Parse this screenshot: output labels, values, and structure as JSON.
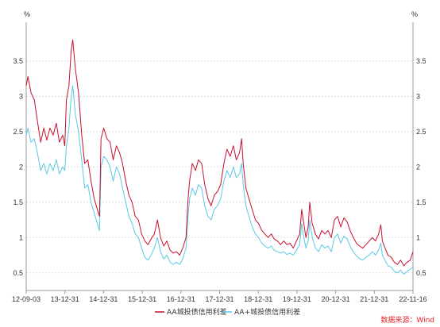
{
  "chart_data": {
    "type": "line",
    "ylabel_left": "%",
    "ylabel_right": "%",
    "ylim": [
      0.25,
      4.05
    ],
    "yticks": [
      "0.5",
      "1",
      "1.5",
      "2",
      "2.5",
      "3",
      "3.5"
    ],
    "xlim": [
      "2012-09-03",
      "2022-11-16"
    ],
    "xticks": [
      "12-09-03",
      "13-12-31",
      "14-12-31",
      "15-12-31",
      "16-12-31",
      "17-12-31",
      "18-12-31",
      "19-12-31",
      "20-12-31",
      "21-12-31",
      "22-11-16"
    ],
    "grid": true,
    "legend_position": "bottom",
    "series": [
      {
        "name": "AA城投债信用利差",
        "color": "#c8102e",
        "points": [
          [
            "2012-09-03",
            3.15
          ],
          [
            "2012-09-20",
            3.28
          ],
          [
            "2012-10-20",
            3.05
          ],
          [
            "2012-11-20",
            2.95
          ],
          [
            "2012-12-20",
            2.65
          ],
          [
            "2013-01-20",
            2.35
          ],
          [
            "2013-02-20",
            2.55
          ],
          [
            "2013-03-20",
            2.38
          ],
          [
            "2013-04-20",
            2.55
          ],
          [
            "2013-05-20",
            2.45
          ],
          [
            "2013-06-20",
            2.62
          ],
          [
            "2013-07-20",
            2.35
          ],
          [
            "2013-08-20",
            2.45
          ],
          [
            "2013-09-10",
            2.3
          ],
          [
            "2013-09-25",
            2.95
          ],
          [
            "2013-10-20",
            3.15
          ],
          [
            "2013-11-10",
            3.65
          ],
          [
            "2013-11-25",
            3.8
          ],
          [
            "2013-12-20",
            3.4
          ],
          [
            "2014-01-20",
            3.05
          ],
          [
            "2014-02-20",
            2.45
          ],
          [
            "2014-03-20",
            2.05
          ],
          [
            "2014-04-20",
            2.1
          ],
          [
            "2014-05-20",
            1.8
          ],
          [
            "2014-06-20",
            1.55
          ],
          [
            "2014-07-20",
            1.4
          ],
          [
            "2014-08-10",
            1.3
          ],
          [
            "2014-08-25",
            2.4
          ],
          [
            "2014-09-20",
            2.55
          ],
          [
            "2014-10-20",
            2.4
          ],
          [
            "2014-11-20",
            2.35
          ],
          [
            "2014-12-20",
            2.1
          ],
          [
            "2015-01-20",
            2.3
          ],
          [
            "2015-02-20",
            2.2
          ],
          [
            "2015-03-20",
            2.05
          ],
          [
            "2015-04-20",
            1.8
          ],
          [
            "2015-05-20",
            1.6
          ],
          [
            "2015-06-20",
            1.5
          ],
          [
            "2015-07-20",
            1.3
          ],
          [
            "2015-08-20",
            1.25
          ],
          [
            "2015-09-20",
            1.05
          ],
          [
            "2015-10-20",
            0.95
          ],
          [
            "2015-11-20",
            0.9
          ],
          [
            "2015-12-20",
            0.98
          ],
          [
            "2016-01-20",
            1.05
          ],
          [
            "2016-02-20",
            1.25
          ],
          [
            "2016-03-20",
            1.0
          ],
          [
            "2016-04-20",
            0.88
          ],
          [
            "2016-05-20",
            0.95
          ],
          [
            "2016-06-20",
            0.82
          ],
          [
            "2016-07-20",
            0.78
          ],
          [
            "2016-08-20",
            0.8
          ],
          [
            "2016-09-20",
            0.75
          ],
          [
            "2016-10-20",
            0.85
          ],
          [
            "2016-11-20",
            1.0
          ],
          [
            "2016-12-10",
            1.55
          ],
          [
            "2016-12-25",
            1.8
          ],
          [
            "2017-01-20",
            2.05
          ],
          [
            "2017-02-20",
            1.95
          ],
          [
            "2017-03-20",
            2.1
          ],
          [
            "2017-04-20",
            2.05
          ],
          [
            "2017-05-20",
            1.75
          ],
          [
            "2017-06-20",
            1.55
          ],
          [
            "2017-07-20",
            1.45
          ],
          [
            "2017-08-20",
            1.6
          ],
          [
            "2017-09-20",
            1.65
          ],
          [
            "2017-10-20",
            1.75
          ],
          [
            "2017-11-20",
            2.05
          ],
          [
            "2017-12-20",
            2.25
          ],
          [
            "2018-01-20",
            2.15
          ],
          [
            "2018-02-20",
            2.3
          ],
          [
            "2018-03-20",
            2.1
          ],
          [
            "2018-04-20",
            2.2
          ],
          [
            "2018-05-10",
            2.4
          ],
          [
            "2018-05-25",
            2.05
          ],
          [
            "2018-06-20",
            1.7
          ],
          [
            "2018-07-20",
            1.55
          ],
          [
            "2018-08-20",
            1.4
          ],
          [
            "2018-09-20",
            1.25
          ],
          [
            "2018-10-20",
            1.2
          ],
          [
            "2018-11-20",
            1.1
          ],
          [
            "2018-12-20",
            1.05
          ],
          [
            "2019-01-20",
            1.0
          ],
          [
            "2019-02-20",
            1.05
          ],
          [
            "2019-03-20",
            0.98
          ],
          [
            "2019-04-20",
            0.95
          ],
          [
            "2019-05-20",
            0.9
          ],
          [
            "2019-06-20",
            0.95
          ],
          [
            "2019-07-20",
            0.9
          ],
          [
            "2019-08-20",
            0.92
          ],
          [
            "2019-09-20",
            0.85
          ],
          [
            "2019-10-20",
            0.95
          ],
          [
            "2019-11-20",
            1.05
          ],
          [
            "2019-12-10",
            1.4
          ],
          [
            "2019-12-25",
            1.25
          ],
          [
            "2020-01-20",
            1.0
          ],
          [
            "2020-02-10",
            1.15
          ],
          [
            "2020-02-25",
            1.5
          ],
          [
            "2020-03-20",
            1.2
          ],
          [
            "2020-04-20",
            1.05
          ],
          [
            "2020-05-20",
            0.98
          ],
          [
            "2020-06-20",
            1.1
          ],
          [
            "2020-07-20",
            1.05
          ],
          [
            "2020-08-20",
            1.1
          ],
          [
            "2020-09-20",
            1.0
          ],
          [
            "2020-10-20",
            1.25
          ],
          [
            "2020-11-20",
            1.3
          ],
          [
            "2020-12-20",
            1.15
          ],
          [
            "2021-01-20",
            1.28
          ],
          [
            "2021-02-20",
            1.22
          ],
          [
            "2021-03-20",
            1.1
          ],
          [
            "2021-04-20",
            1.0
          ],
          [
            "2021-05-20",
            0.92
          ],
          [
            "2021-06-20",
            0.88
          ],
          [
            "2021-07-20",
            0.85
          ],
          [
            "2021-08-20",
            0.9
          ],
          [
            "2021-09-20",
            0.95
          ],
          [
            "2021-10-20",
            1.0
          ],
          [
            "2021-11-20",
            0.95
          ],
          [
            "2021-12-20",
            1.05
          ],
          [
            "2022-01-10",
            1.18
          ],
          [
            "2022-01-25",
            0.95
          ],
          [
            "2022-02-20",
            0.85
          ],
          [
            "2022-03-20",
            0.75
          ],
          [
            "2022-04-20",
            0.72
          ],
          [
            "2022-05-20",
            0.65
          ],
          [
            "2022-06-20",
            0.62
          ],
          [
            "2022-07-20",
            0.68
          ],
          [
            "2022-08-20",
            0.6
          ],
          [
            "2022-09-20",
            0.65
          ],
          [
            "2022-10-20",
            0.68
          ],
          [
            "2022-11-16",
            0.8
          ]
        ]
      },
      {
        "name": "AA+城投债信用利差",
        "color": "#5bc8e6",
        "points": [
          [
            "2012-09-03",
            2.45
          ],
          [
            "2012-09-20",
            2.55
          ],
          [
            "2012-10-20",
            2.35
          ],
          [
            "2012-11-20",
            2.4
          ],
          [
            "2012-12-20",
            2.2
          ],
          [
            "2013-01-20",
            1.95
          ],
          [
            "2013-02-20",
            2.05
          ],
          [
            "2013-03-20",
            1.9
          ],
          [
            "2013-04-20",
            2.05
          ],
          [
            "2013-05-20",
            1.95
          ],
          [
            "2013-06-20",
            2.1
          ],
          [
            "2013-07-20",
            1.9
          ],
          [
            "2013-08-20",
            2.0
          ],
          [
            "2013-09-10",
            1.95
          ],
          [
            "2013-09-25",
            2.3
          ],
          [
            "2013-10-20",
            2.55
          ],
          [
            "2013-11-10",
            3.0
          ],
          [
            "2013-11-25",
            3.15
          ],
          [
            "2013-12-20",
            2.75
          ],
          [
            "2014-01-20",
            2.5
          ],
          [
            "2014-02-20",
            2.1
          ],
          [
            "2014-03-20",
            1.7
          ],
          [
            "2014-04-20",
            1.75
          ],
          [
            "2014-05-20",
            1.5
          ],
          [
            "2014-06-20",
            1.35
          ],
          [
            "2014-07-20",
            1.2
          ],
          [
            "2014-08-10",
            1.1
          ],
          [
            "2014-08-25",
            2.0
          ],
          [
            "2014-09-20",
            2.15
          ],
          [
            "2014-10-20",
            2.1
          ],
          [
            "2014-11-20",
            2.0
          ],
          [
            "2014-12-20",
            1.8
          ],
          [
            "2015-01-20",
            2.0
          ],
          [
            "2015-02-20",
            1.9
          ],
          [
            "2015-03-20",
            1.7
          ],
          [
            "2015-04-20",
            1.5
          ],
          [
            "2015-05-20",
            1.3
          ],
          [
            "2015-06-20",
            1.2
          ],
          [
            "2015-07-20",
            1.05
          ],
          [
            "2015-08-20",
            1.0
          ],
          [
            "2015-09-20",
            0.85
          ],
          [
            "2015-10-20",
            0.72
          ],
          [
            "2015-11-20",
            0.68
          ],
          [
            "2015-12-20",
            0.75
          ],
          [
            "2016-01-20",
            0.85
          ],
          [
            "2016-02-20",
            1.0
          ],
          [
            "2016-03-20",
            0.8
          ],
          [
            "2016-04-20",
            0.7
          ],
          [
            "2016-05-20",
            0.75
          ],
          [
            "2016-06-20",
            0.65
          ],
          [
            "2016-07-20",
            0.62
          ],
          [
            "2016-08-20",
            0.65
          ],
          [
            "2016-09-20",
            0.62
          ],
          [
            "2016-10-20",
            0.7
          ],
          [
            "2016-11-20",
            0.85
          ],
          [
            "2016-12-10",
            1.3
          ],
          [
            "2016-12-25",
            1.55
          ],
          [
            "2017-01-20",
            1.7
          ],
          [
            "2017-02-20",
            1.6
          ],
          [
            "2017-03-20",
            1.75
          ],
          [
            "2017-04-20",
            1.7
          ],
          [
            "2017-05-20",
            1.45
          ],
          [
            "2017-06-20",
            1.3
          ],
          [
            "2017-07-20",
            1.25
          ],
          [
            "2017-08-20",
            1.4
          ],
          [
            "2017-09-20",
            1.45
          ],
          [
            "2017-10-20",
            1.55
          ],
          [
            "2017-11-20",
            1.8
          ],
          [
            "2017-12-20",
            1.95
          ],
          [
            "2018-01-20",
            1.85
          ],
          [
            "2018-02-20",
            2.0
          ],
          [
            "2018-03-20",
            1.85
          ],
          [
            "2018-04-20",
            1.9
          ],
          [
            "2018-05-10",
            2.05
          ],
          [
            "2018-05-25",
            1.75
          ],
          [
            "2018-06-20",
            1.45
          ],
          [
            "2018-07-20",
            1.3
          ],
          [
            "2018-08-20",
            1.15
          ],
          [
            "2018-09-20",
            1.05
          ],
          [
            "2018-10-20",
            1.0
          ],
          [
            "2018-11-20",
            0.92
          ],
          [
            "2018-12-20",
            0.88
          ],
          [
            "2019-01-20",
            0.85
          ],
          [
            "2019-02-20",
            0.88
          ],
          [
            "2019-03-20",
            0.82
          ],
          [
            "2019-04-20",
            0.8
          ],
          [
            "2019-05-20",
            0.78
          ],
          [
            "2019-06-20",
            0.8
          ],
          [
            "2019-07-20",
            0.76
          ],
          [
            "2019-08-20",
            0.78
          ],
          [
            "2019-09-20",
            0.75
          ],
          [
            "2019-10-20",
            0.82
          ],
          [
            "2019-11-20",
            0.9
          ],
          [
            "2019-12-10",
            1.2
          ],
          [
            "2019-12-25",
            1.05
          ],
          [
            "2020-01-20",
            0.85
          ],
          [
            "2020-02-10",
            0.95
          ],
          [
            "2020-02-25",
            1.25
          ],
          [
            "2020-03-20",
            1.0
          ],
          [
            "2020-04-20",
            0.85
          ],
          [
            "2020-05-20",
            0.8
          ],
          [
            "2020-06-20",
            0.9
          ],
          [
            "2020-07-20",
            0.85
          ],
          [
            "2020-08-20",
            0.88
          ],
          [
            "2020-09-20",
            0.8
          ],
          [
            "2020-10-20",
            1.0
          ],
          [
            "2020-11-20",
            1.05
          ],
          [
            "2020-12-20",
            0.92
          ],
          [
            "2021-01-20",
            1.02
          ],
          [
            "2021-02-20",
            0.98
          ],
          [
            "2021-03-20",
            0.88
          ],
          [
            "2021-04-20",
            0.8
          ],
          [
            "2021-05-20",
            0.74
          ],
          [
            "2021-06-20",
            0.7
          ],
          [
            "2021-07-20",
            0.68
          ],
          [
            "2021-08-20",
            0.72
          ],
          [
            "2021-09-20",
            0.75
          ],
          [
            "2021-10-20",
            0.8
          ],
          [
            "2021-11-20",
            0.75
          ],
          [
            "2021-12-20",
            0.82
          ],
          [
            "2022-01-10",
            0.92
          ],
          [
            "2022-01-25",
            0.75
          ],
          [
            "2022-02-20",
            0.68
          ],
          [
            "2022-03-20",
            0.6
          ],
          [
            "2022-04-20",
            0.58
          ],
          [
            "2022-05-20",
            0.52
          ],
          [
            "2022-06-20",
            0.5
          ],
          [
            "2022-07-20",
            0.54
          ],
          [
            "2022-08-20",
            0.48
          ],
          [
            "2022-09-20",
            0.52
          ],
          [
            "2022-10-20",
            0.55
          ],
          [
            "2022-11-16",
            0.58
          ]
        ]
      }
    ],
    "source": "数据来源：Wind"
  }
}
